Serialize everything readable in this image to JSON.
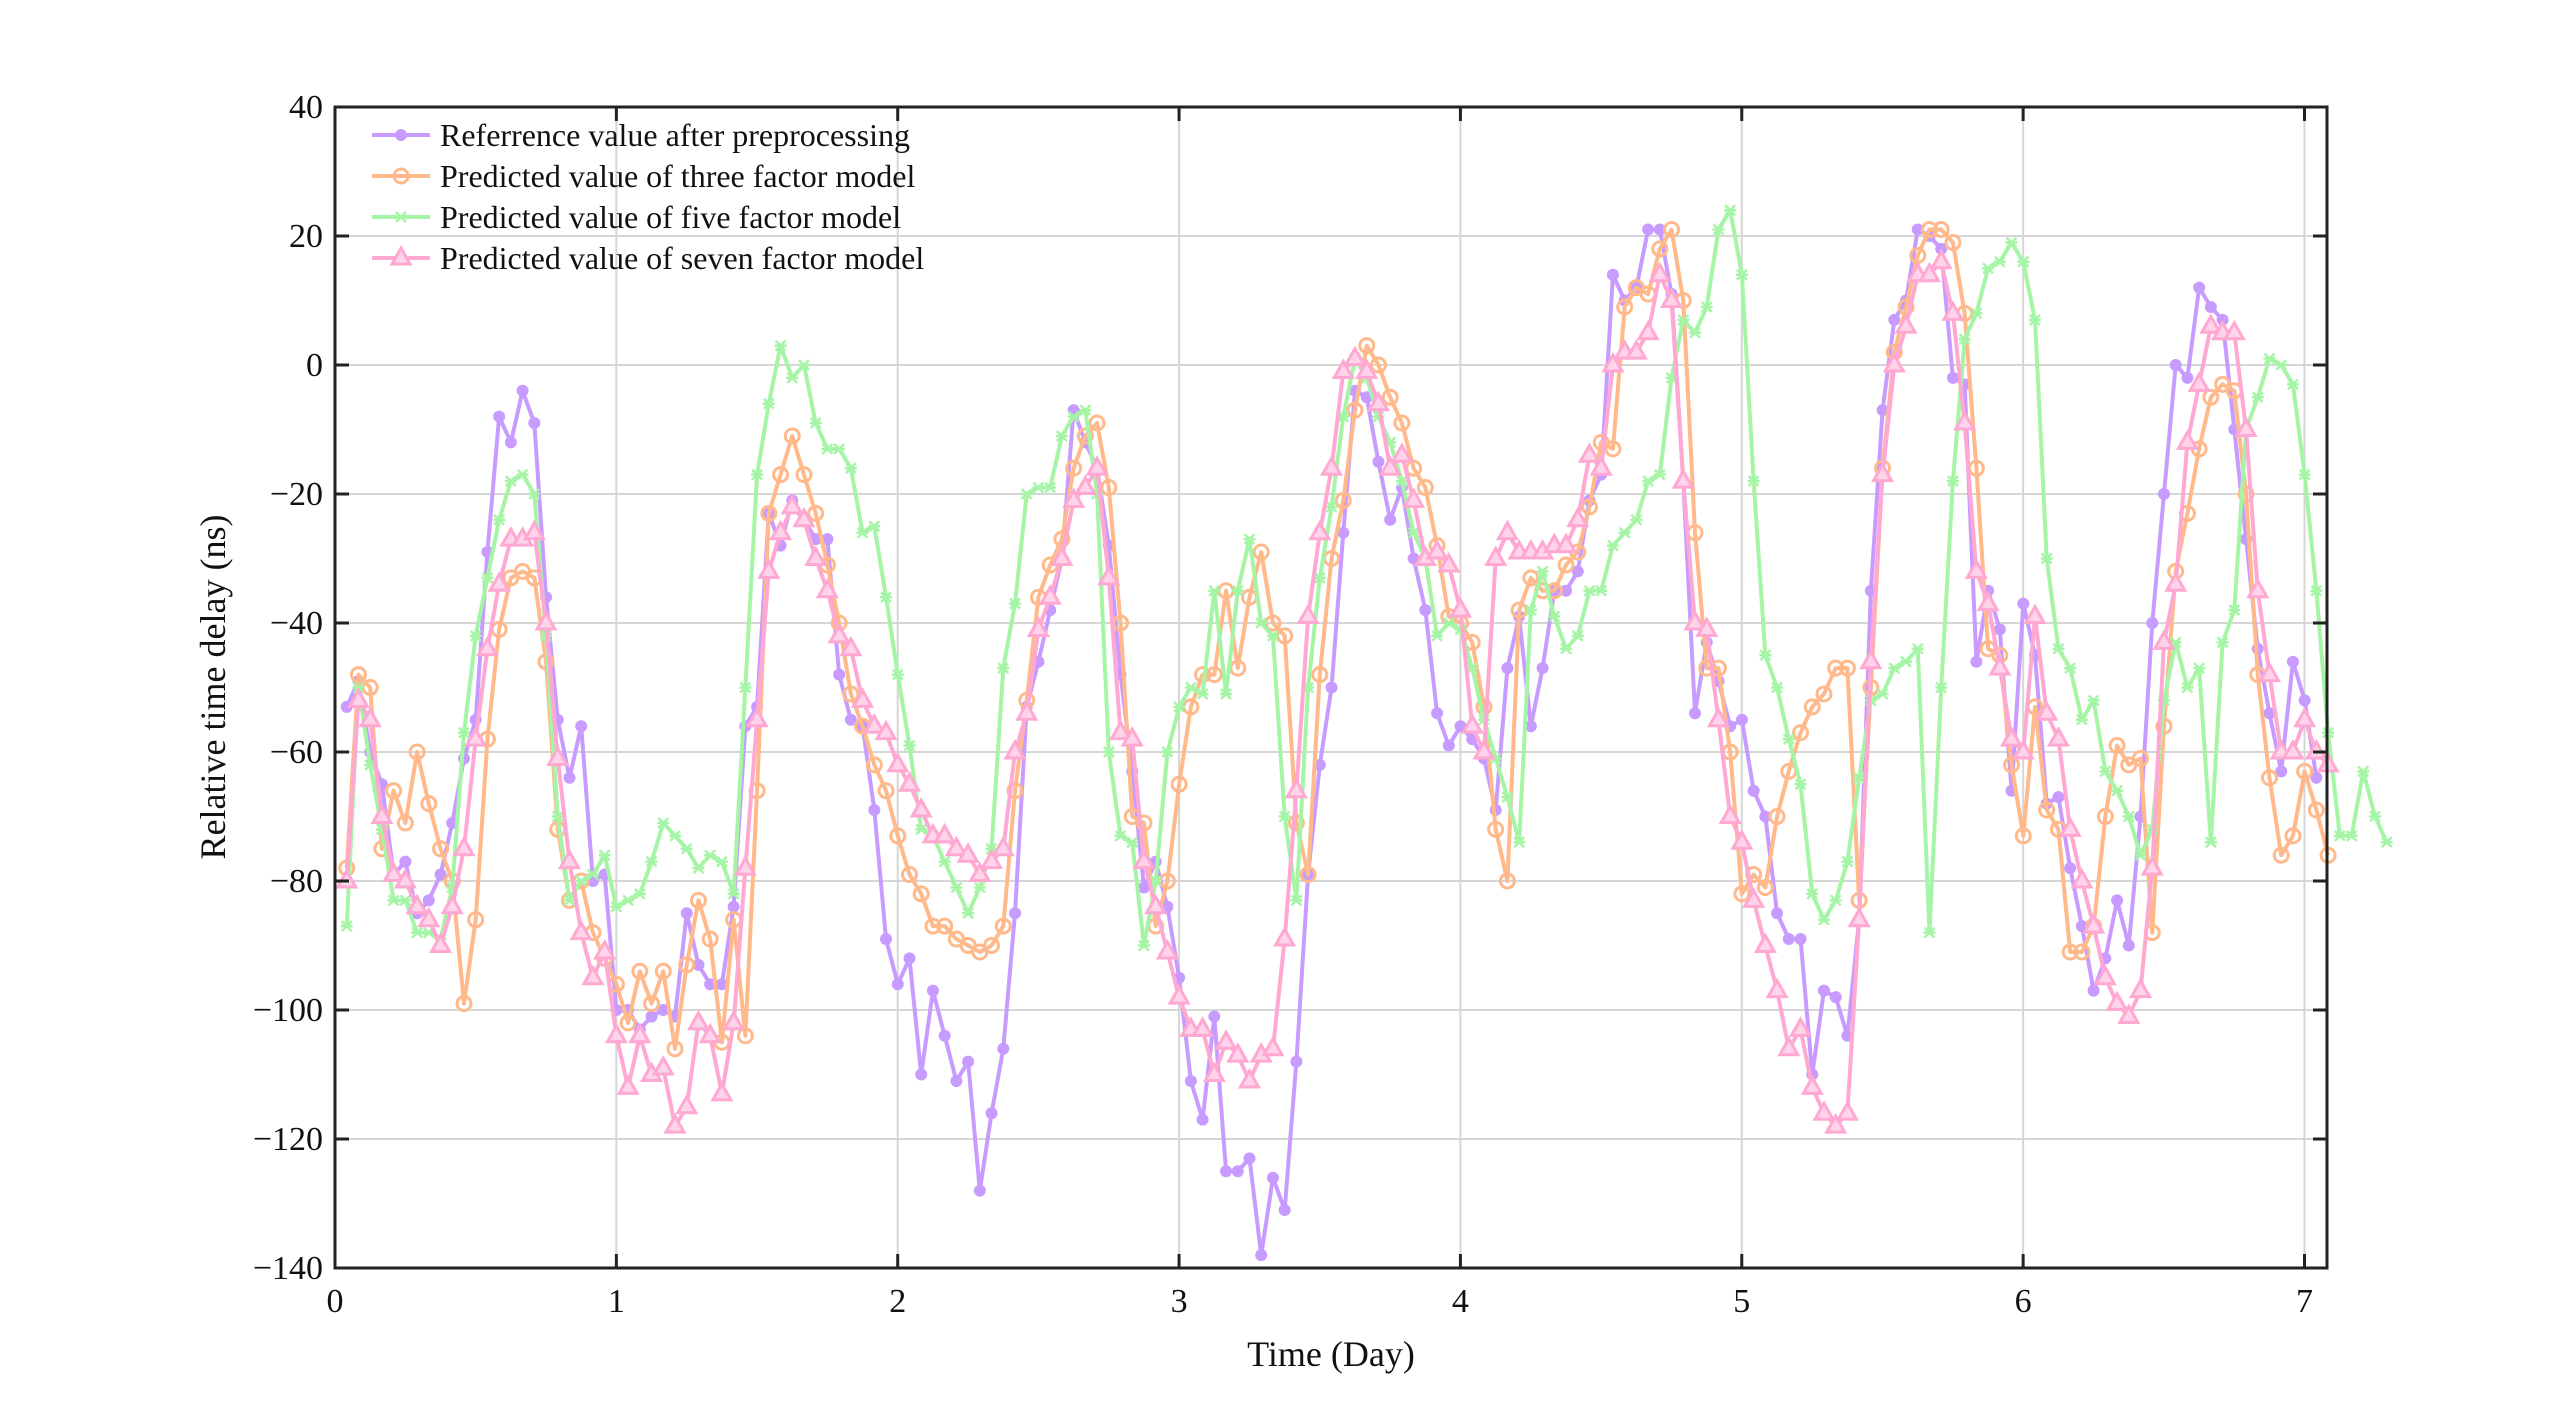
{
  "chart_data": {
    "type": "line",
    "title": "",
    "xlabel": "Time (Day)",
    "ylabel": "Relative time delay (ns)",
    "xlim": [
      0,
      7.08
    ],
    "ylim": [
      -140,
      40
    ],
    "xticks": [
      "0",
      "1",
      "2",
      "3",
      "4",
      "5",
      "6",
      "7"
    ],
    "yticks": [
      "40",
      "20",
      "0",
      "−20",
      "−40",
      "−60",
      "−80",
      "−100",
      "−120",
      "−140"
    ],
    "ytick_values": [
      40,
      20,
      0,
      -20,
      -40,
      -60,
      -80,
      -100,
      -120,
      -140
    ],
    "xtick_values": [
      0,
      1,
      2,
      3,
      4,
      5,
      6,
      7
    ],
    "grid": true,
    "legend_position": "top-left",
    "x_start": 0.0417,
    "x_step": 0.04167,
    "series": [
      {
        "name": "Referrence value after preprocessing",
        "color": "#c79bff",
        "marker": "filled-circle",
        "values": [
          -53,
          -49,
          -60,
          -65,
          -79,
          -77,
          -85,
          -83,
          -79,
          -71,
          -61,
          -55,
          -29,
          -8,
          -12,
          -4,
          -9,
          -36,
          -55,
          -64,
          -56,
          -80,
          -79,
          -100,
          -100,
          -103,
          -101,
          -100,
          -101,
          -85,
          -93,
          -96,
          -96,
          -84,
          -56,
          -53,
          -23,
          -28,
          -21,
          -24,
          -27,
          -27,
          -48,
          -55,
          -56,
          -69,
          -89,
          -96,
          -92,
          -110,
          -97,
          -104,
          -111,
          -108,
          -128,
          -116,
          -106,
          -85,
          -53,
          -46,
          -38,
          -30,
          -7,
          -12,
          -16,
          -28,
          -48,
          -63,
          -81,
          -77,
          -84,
          -95,
          -111,
          -117,
          -101,
          -125,
          -125,
          -123,
          -138,
          -126,
          -131,
          -108,
          -79,
          -62,
          -50,
          -26,
          -4,
          -5,
          -15,
          -24,
          -19,
          -30,
          -38,
          -54,
          -59,
          -56,
          -58,
          -61,
          -69,
          -47,
          -39,
          -56,
          -47,
          -35,
          -35,
          -32,
          -21,
          -17,
          14,
          10,
          12,
          21,
          21,
          11,
          -18,
          -54,
          -43,
          -49,
          -56,
          -55,
          -66,
          -70,
          -85,
          -89,
          -89,
          -110,
          -97,
          -98,
          -104,
          -86,
          -35,
          -7,
          7,
          10,
          21,
          20,
          18,
          -2,
          -3,
          -46,
          -35,
          -41,
          -66,
          -37,
          -45,
          -68,
          -67,
          -78,
          -87,
          -97,
          -92,
          -83,
          -90,
          -70,
          -40,
          -20,
          0,
          -2,
          12,
          9,
          7,
          -10,
          -27,
          -44,
          -54,
          -63,
          -46,
          -52,
          -64
        ]
      },
      {
        "name": "Predicted value of three factor model",
        "color": "#ffb98a",
        "marker": "open-circle",
        "values": [
          -78,
          -48,
          -50,
          -75,
          -66,
          -71,
          -60,
          -68,
          -75,
          -80,
          -99,
          -86,
          -58,
          -41,
          -33,
          -32,
          -33,
          -46,
          -72,
          -83,
          -80,
          -88,
          -92,
          -96,
          -102,
          -94,
          -99,
          -94,
          -106,
          -93,
          -83,
          -89,
          -105,
          -86,
          -104,
          -66,
          -23,
          -17,
          -11,
          -17,
          -23,
          -31,
          -40,
          -51,
          -56,
          -62,
          -66,
          -73,
          -79,
          -82,
          -87,
          -87,
          -89,
          -90,
          -91,
          -90,
          -87,
          -66,
          -52,
          -36,
          -31,
          -27,
          -16,
          -11,
          -9,
          -19,
          -40,
          -70,
          -71,
          -87,
          -80,
          -65,
          -53,
          -48,
          -48,
          -35,
          -47,
          -36,
          -29,
          -40,
          -42,
          -71,
          -79,
          -48,
          -30,
          -21,
          -7,
          3,
          0,
          -5,
          -9,
          -16,
          -19,
          -28,
          -39,
          -40,
          -43,
          -53,
          -72,
          -80,
          -38,
          -33,
          -35,
          -35,
          -31,
          -29,
          -22,
          -12,
          -13,
          9,
          12,
          11,
          18,
          21,
          10,
          -26,
          -47,
          -47,
          -60,
          -82,
          -79,
          -81,
          -70,
          -63,
          -57,
          -53,
          -51,
          -47,
          -47,
          -83,
          -50,
          -16,
          2,
          9,
          17,
          21,
          21,
          19,
          8,
          -16,
          -44,
          -45,
          -62,
          -73,
          -53,
          -69,
          -72,
          -91,
          -91,
          -87,
          -70,
          -59,
          -62,
          -61,
          -88,
          -56,
          -32,
          -23,
          -13,
          -5,
          -3,
          -4,
          -20,
          -48,
          -64,
          -76,
          -73,
          -63,
          -69,
          -76
        ]
      },
      {
        "name": "Predicted value of five factor model",
        "color": "#a6f5a6",
        "marker": "x-star",
        "values": [
          -87,
          -50,
          -62,
          -72,
          -83,
          -83,
          -88,
          -88,
          -89,
          -81,
          -57,
          -42,
          -33,
          -24,
          -18,
          -17,
          -20,
          -42,
          -70,
          -83,
          -80,
          -79,
          -76,
          -84,
          -83,
          -82,
          -77,
          -71,
          -73,
          -75,
          -78,
          -76,
          -77,
          -82,
          -50,
          -17,
          -6,
          3,
          -2,
          0,
          -9,
          -13,
          -13,
          -16,
          -26,
          -25,
          -36,
          -48,
          -59,
          -72,
          -73,
          -77,
          -81,
          -85,
          -81,
          -75,
          -47,
          -37,
          -20,
          -19,
          -19,
          -11,
          -8,
          -7,
          -20,
          -60,
          -73,
          -74,
          -90,
          -80,
          -60,
          -53,
          -50,
          -51,
          -35,
          -51,
          -35,
          -27,
          -40,
          -42,
          -70,
          -83,
          -50,
          -33,
          -22,
          -8,
          1,
          -2,
          -8,
          -12,
          -18,
          -26,
          -30,
          -42,
          -40,
          -41,
          -47,
          -55,
          -61,
          -67,
          -74,
          -38,
          -32,
          -39,
          -44,
          -42,
          -35,
          -35,
          -28,
          -26,
          -24,
          -18,
          -17,
          -2,
          7,
          5,
          9,
          21,
          24,
          14,
          -18,
          -45,
          -50,
          -58,
          -65,
          -82,
          -86,
          -83,
          -77,
          -64,
          -52,
          -51,
          -47,
          -46,
          -44,
          -88,
          -50,
          -18,
          4,
          8,
          15,
          16,
          19,
          16,
          7,
          -30,
          -44,
          -47,
          -55,
          -52,
          -63,
          -66,
          -70,
          -76,
          -72,
          -52,
          -43,
          -50,
          -47,
          -74,
          -43,
          -38,
          -10,
          -5,
          1,
          0,
          -3,
          -17,
          -35,
          -57,
          -73,
          -73,
          -63,
          -70,
          -74
        ]
      },
      {
        "name": "Predicted value of seven factor model",
        "color": "#ffa8d2",
        "marker": "triangle",
        "values": [
          -80,
          -52,
          -55,
          -70,
          -79,
          -80,
          -84,
          -86,
          -90,
          -84,
          -75,
          -58,
          -44,
          -34,
          -27,
          -27,
          -26,
          -40,
          -61,
          -77,
          -88,
          -95,
          -91,
          -104,
          -112,
          -104,
          -110,
          -109,
          -118,
          -115,
          -102,
          -104,
          -113,
          -102,
          -78,
          -55,
          -32,
          -26,
          -22,
          -24,
          -30,
          -35,
          -42,
          -44,
          -52,
          -56,
          -57,
          -62,
          -65,
          -69,
          -73,
          -73,
          -75,
          -76,
          -79,
          -77,
          -75,
          -60,
          -54,
          -41,
          -36,
          -30,
          -21,
          -19,
          -16,
          -33,
          -57,
          -58,
          -77,
          -84,
          -91,
          -98,
          -103,
          -103,
          -110,
          -105,
          -107,
          -111,
          -107,
          -106,
          -89,
          -66,
          -39,
          -26,
          -16,
          -1,
          1,
          -1,
          -6,
          -16,
          -14,
          -21,
          -30,
          -29,
          -31,
          -38,
          -56,
          -60,
          -30,
          -26,
          -29,
          -29,
          -29,
          -28,
          -28,
          -24,
          -14,
          -16,
          0,
          2,
          2,
          5,
          14,
          10,
          -18,
          -40,
          -41,
          -55,
          -70,
          -74,
          -83,
          -90,
          -97,
          -106,
          -103,
          -112,
          -116,
          -118,
          -116,
          -86,
          -46,
          -17,
          0,
          6,
          14,
          14,
          16,
          8,
          -9,
          -32,
          -37,
          -47,
          -58,
          -60,
          -39,
          -54,
          -58,
          -72,
          -80,
          -87,
          -95,
          -99,
          -101,
          -97,
          -78,
          -43,
          -34,
          -12,
          -3,
          6,
          5,
          5,
          -10,
          -35,
          -48,
          -60,
          -60,
          -55,
          -60,
          -62
        ]
      }
    ]
  }
}
